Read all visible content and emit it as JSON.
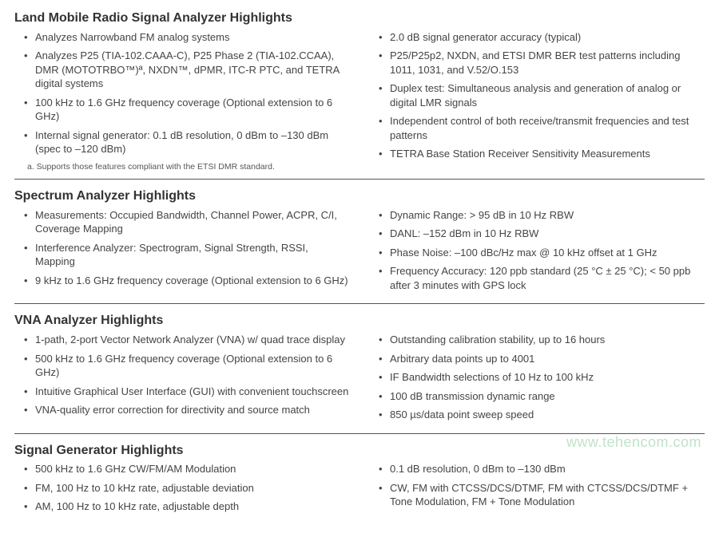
{
  "watermark": "www.tehencom.com",
  "sections": [
    {
      "title": "Land Mobile Radio Signal Analyzer Highlights",
      "left": [
        "Analyzes Narrowband FM analog systems",
        "Analyzes P25 (TIA-102.CAAA-C), P25 Phase 2 (TIA-102.CCAA), DMR (MOTOTRBO™)ª, NXDN™, dPMR, ITC-R PTC, and TETRA digital systems",
        "100 kHz to 1.6 GHz frequency coverage (Optional extension to 6 GHz)",
        "Internal signal generator: 0.1 dB resolution, 0 dBm to –130 dBm (spec to –120 dBm)"
      ],
      "right": [
        "2.0 dB signal generator accuracy (typical)",
        "P25/P25p2, NXDN, and ETSI DMR BER test patterns including 1011, 1031, and V.52/O.153",
        "Duplex test: Simultaneous analysis and generation of analog or digital LMR signals",
        "Independent control of both receive/transmit frequencies and test patterns",
        "TETRA Base Station Receiver Sensitivity Measurements"
      ],
      "footnote": "a.  Supports those features compliant with the ETSI DMR standard."
    },
    {
      "title": "Spectrum Analyzer Highlights",
      "left": [
        "Measurements: Occupied Bandwidth, Channel Power, ACPR, C/I, Coverage Mapping",
        "Interference Analyzer: Spectrogram, Signal Strength, RSSI, Mapping",
        "9 kHz to 1.6 GHz frequency coverage (Optional extension to 6 GHz)"
      ],
      "right": [
        "Dynamic Range: > 95 dB in 10 Hz RBW",
        "DANL: –152 dBm in 10 Hz RBW",
        "Phase Noise: –100 dBc/Hz max @ 10 kHz offset at 1 GHz",
        "Frequency Accuracy: 120 ppb standard (25 °C ± 25 °C); < 50 ppb after 3 minutes with GPS lock"
      ]
    },
    {
      "title": "VNA Analyzer Highlights",
      "left": [
        "1-path, 2-port Vector Network Analyzer (VNA) w/ quad trace display",
        "500 kHz to 1.6 GHz frequency coverage (Optional extension to 6 GHz)",
        "Intuitive Graphical User Interface (GUI) with convenient touchscreen",
        "VNA-quality error correction for directivity and source match"
      ],
      "right": [
        "Outstanding calibration stability, up to 16 hours",
        "Arbitrary data points up to 4001",
        "IF Bandwidth selections of 10 Hz to 100 kHz",
        "100 dB transmission dynamic range",
        "850 µs/data point sweep speed"
      ]
    },
    {
      "title": "Signal Generator Highlights",
      "left": [
        "500 kHz to 1.6 GHz CW/FM/AM Modulation",
        "FM, 100 Hz to 10 kHz rate, adjustable deviation",
        "AM, 100 Hz to 10 kHz rate, adjustable depth"
      ],
      "right": [
        "0.1 dB resolution, 0 dBm to –130 dBm",
        "CW, FM with CTCSS/DCS/DTMF, FM with CTCSS/DCS/DTMF + Tone Modulation, FM + Tone Modulation"
      ]
    }
  ]
}
